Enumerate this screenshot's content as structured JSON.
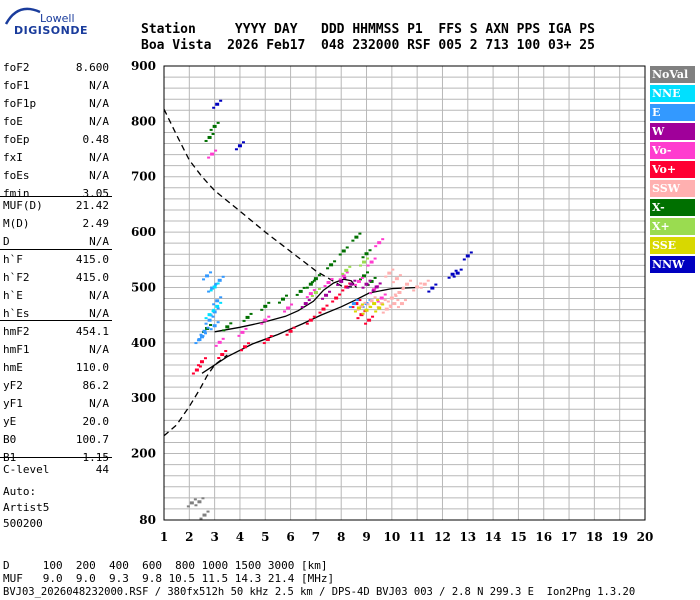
{
  "logo": {
    "line1": "Lowell",
    "line2": "DIGISONDE"
  },
  "header": {
    "line1": "Station     YYYY DAY   DDD HHMMSS P1  FFS S AXN PPS IGA PS",
    "line2": "Boa Vista  2026 Feb17  048 232000 RSF 005 2 713 100 03+ 25"
  },
  "params": [
    {
      "k": "foF2",
      "v": "8.600"
    },
    {
      "k": "foF1",
      "v": "N/A"
    },
    {
      "k": "foF1p",
      "v": "N/A"
    },
    {
      "k": "foE",
      "v": "N/A"
    },
    {
      "k": "foEp",
      "v": "0.48"
    },
    {
      "k": "fxI",
      "v": "N/A"
    },
    {
      "k": "foEs",
      "v": "N/A"
    },
    {
      "k": "fmin",
      "v": "3.05"
    },
    {
      "k": "MUF(D)",
      "v": "21.42"
    },
    {
      "k": "M(D)",
      "v": "2.49"
    },
    {
      "k": "D",
      "v": "N/A"
    },
    {
      "k": "h`F",
      "v": "415.0"
    },
    {
      "k": "h`F2",
      "v": "415.0"
    },
    {
      "k": "h`E",
      "v": "N/A"
    },
    {
      "k": "h`Es",
      "v": "N/A"
    },
    {
      "k": "hmF2",
      "v": "454.1"
    },
    {
      "k": "hmF1",
      "v": "N/A"
    },
    {
      "k": "hmE",
      "v": "110.0"
    },
    {
      "k": "yF2",
      "v": "86.2"
    },
    {
      "k": "yF1",
      "v": "N/A"
    },
    {
      "k": "yE",
      "v": "20.0"
    },
    {
      "k": "B0",
      "v": "100.7"
    },
    {
      "k": "B1",
      "v": "1.15"
    },
    {
      "k": "C-level",
      "v": "44"
    }
  ],
  "auto": {
    "line1": "Auto:",
    "line2": "Artist5",
    "line3": "500200"
  },
  "footer": {
    "d_line": "D     100  200  400  600  800 1000 1500 3000 [km]",
    "muf_line": "MUF   9.0  9.0  9.3  9.8 10.5 11.5 14.3 21.4 [MHz]",
    "file_line": "BVJ03_2026048232000.RSF / 380fx512h 50 kHz 2.5 km / DPS-4D BVJ03 003 / 2.8 N 299.3 E  Ion2Png 1.3.20"
  },
  "legend": [
    {
      "label": "NoVal",
      "color": "#808080"
    },
    {
      "label": "NNE",
      "color": "#00e0ff"
    },
    {
      "label": "E",
      "color": "#3399ff"
    },
    {
      "label": "W",
      "color": "#a0009a"
    },
    {
      "label": "Vo-",
      "color": "#ff3ccf"
    },
    {
      "label": "Vo+",
      "color": "#ff0033"
    },
    {
      "label": "SSW",
      "color": "#ffb0b0"
    },
    {
      "label": "X-",
      "color": "#007000"
    },
    {
      "label": "X+",
      "color": "#9adc50"
    },
    {
      "label": "SSE",
      "color": "#d8d800"
    },
    {
      "label": "NNW",
      "color": "#0000c0"
    }
  ],
  "chart_data": {
    "type": "scatter",
    "xlabel": "",
    "ylabel": "",
    "xlim": [
      1,
      20
    ],
    "ylim": [
      80,
      900
    ],
    "x_ticks": [
      1,
      2,
      3,
      4,
      5,
      6,
      7,
      8,
      9,
      10,
      11,
      12,
      13,
      14,
      15,
      16,
      17,
      18,
      19,
      20
    ],
    "y_ticks": [
      80,
      200,
      300,
      400,
      500,
      600,
      700,
      800,
      900
    ],
    "grid": true,
    "series": [
      {
        "name": "X-",
        "color": "#007000",
        "points": [
          [
            2.7,
            425
          ],
          [
            3.5,
            428
          ],
          [
            4.3,
            445
          ],
          [
            5.0,
            465
          ],
          [
            5.7,
            478
          ],
          [
            6.4,
            492
          ],
          [
            7.0,
            515
          ],
          [
            7.6,
            540
          ],
          [
            8.1,
            565
          ],
          [
            8.6,
            590
          ],
          [
            9.0,
            560
          ],
          [
            8.9,
            520
          ],
          [
            6.8,
            505
          ],
          [
            9.2,
            510
          ],
          [
            2.8,
            770
          ],
          [
            3.0,
            790
          ]
        ]
      },
      {
        "name": "Vo-",
        "color": "#ff3ccf",
        "points": [
          [
            3.2,
            400
          ],
          [
            4.1,
            418
          ],
          [
            5.0,
            440
          ],
          [
            5.9,
            462
          ],
          [
            6.8,
            488
          ],
          [
            7.5,
            508
          ],
          [
            8.1,
            520
          ],
          [
            8.7,
            510
          ],
          [
            9.3,
            495
          ],
          [
            9.6,
            480
          ],
          [
            2.9,
            740
          ],
          [
            9.5,
            580
          ],
          [
            9.2,
            545
          ]
        ]
      },
      {
        "name": "Vo+",
        "color": "#ff0033",
        "points": [
          [
            2.5,
            365
          ],
          [
            3.3,
            378
          ],
          [
            4.2,
            392
          ],
          [
            5.1,
            405
          ],
          [
            6.0,
            420
          ],
          [
            6.8,
            440
          ],
          [
            7.3,
            460
          ],
          [
            7.8,
            480
          ],
          [
            8.2,
            500
          ],
          [
            8.6,
            470
          ],
          [
            8.8,
            450
          ],
          [
            9.1,
            440
          ],
          [
            2.3,
            350
          ]
        ]
      },
      {
        "name": "E",
        "color": "#3399ff",
        "points": [
          [
            2.4,
            405
          ],
          [
            2.6,
            420
          ],
          [
            2.8,
            440
          ],
          [
            3.0,
            455
          ],
          [
            3.1,
            475
          ],
          [
            2.9,
            498
          ],
          [
            3.2,
            512
          ],
          [
            2.7,
            520
          ],
          [
            3.0,
            430
          ],
          [
            2.5,
            410
          ],
          [
            8.5,
            470
          ],
          [
            9.0,
            470
          ]
        ]
      },
      {
        "name": "NNE",
        "color": "#00e0ff",
        "points": [
          [
            2.8,
            450
          ],
          [
            3.1,
            465
          ],
          [
            3.0,
            500
          ]
        ]
      },
      {
        "name": "W",
        "color": "#a0009a",
        "points": [
          [
            8.0,
            510
          ],
          [
            8.4,
            505
          ],
          [
            9.0,
            505
          ],
          [
            9.4,
            500
          ],
          [
            6.6,
            470
          ],
          [
            7.4,
            485
          ]
        ]
      },
      {
        "name": "SSW",
        "color": "#ffb0b0",
        "points": [
          [
            9.2,
            475
          ],
          [
            9.6,
            470
          ],
          [
            10.0,
            480
          ],
          [
            10.3,
            490
          ],
          [
            10.6,
            505
          ],
          [
            10.1,
            470
          ],
          [
            9.8,
            460
          ],
          [
            10.4,
            470
          ],
          [
            11.0,
            500
          ],
          [
            11.3,
            505
          ],
          [
            10.2,
            515
          ],
          [
            9.9,
            525
          ],
          [
            8.8,
            465
          ]
        ]
      },
      {
        "name": "X+",
        "color": "#9adc50",
        "points": [
          [
            7.0,
            490
          ],
          [
            8.2,
            530
          ],
          [
            8.9,
            545
          ]
        ]
      },
      {
        "name": "SSE",
        "color": "#d8d800",
        "points": [
          [
            8.7,
            462
          ],
          [
            9.0,
            458
          ],
          [
            9.3,
            470
          ],
          [
            9.5,
            462
          ]
        ]
      },
      {
        "name": "NNW",
        "color": "#0000c0",
        "points": [
          [
            12.4,
            523
          ],
          [
            12.6,
            525
          ],
          [
            13.0,
            556
          ],
          [
            11.6,
            498
          ],
          [
            4.0,
            755
          ],
          [
            3.1,
            830
          ]
        ]
      },
      {
        "name": "NoVal",
        "color": "#808080",
        "points": [
          [
            2.1,
            110
          ],
          [
            2.4,
            112
          ],
          [
            2.6,
            88
          ]
        ]
      }
    ],
    "lines": [
      {
        "name": "",
        "color": "#000",
        "style": "solid",
        "points": [
          [
            2.5,
            345
          ],
          [
            3.5,
            375
          ],
          [
            4.5,
            398
          ],
          [
            5.5,
            415
          ],
          [
            6.5,
            435
          ],
          [
            7.2,
            450
          ],
          [
            8.0,
            465
          ],
          [
            8.6,
            478
          ],
          [
            9.1,
            490
          ],
          [
            10.0,
            498
          ],
          [
            11.0,
            500
          ]
        ]
      },
      {
        "name": "",
        "color": "#000",
        "style": "solid",
        "points": [
          [
            3.0,
            420
          ],
          [
            4.0,
            428
          ],
          [
            5.0,
            438
          ],
          [
            5.8,
            448
          ],
          [
            6.3,
            458
          ],
          [
            6.9,
            475
          ],
          [
            7.3,
            495
          ],
          [
            7.7,
            508
          ],
          [
            8.1,
            515
          ],
          [
            8.4,
            512
          ],
          [
            8.6,
            500
          ]
        ]
      },
      {
        "name": "",
        "color": "#000",
        "style": "dashed",
        "points": [
          [
            1.0,
            822
          ],
          [
            1.5,
            775
          ],
          [
            2.0,
            730
          ],
          [
            2.5,
            700
          ],
          [
            3.0,
            675
          ],
          [
            4.0,
            638
          ],
          [
            5.0,
            600
          ],
          [
            6.0,
            565
          ],
          [
            7.0,
            530
          ],
          [
            8.0,
            503
          ],
          [
            8.6,
            500
          ]
        ]
      },
      {
        "name": "",
        "color": "#000",
        "style": "dashed",
        "points": [
          [
            1.0,
            232
          ],
          [
            1.5,
            252
          ],
          [
            2.0,
            285
          ],
          [
            2.4,
            315
          ],
          [
            2.7,
            340
          ],
          [
            3.0,
            360
          ],
          [
            3.5,
            378
          ]
        ]
      }
    ]
  }
}
